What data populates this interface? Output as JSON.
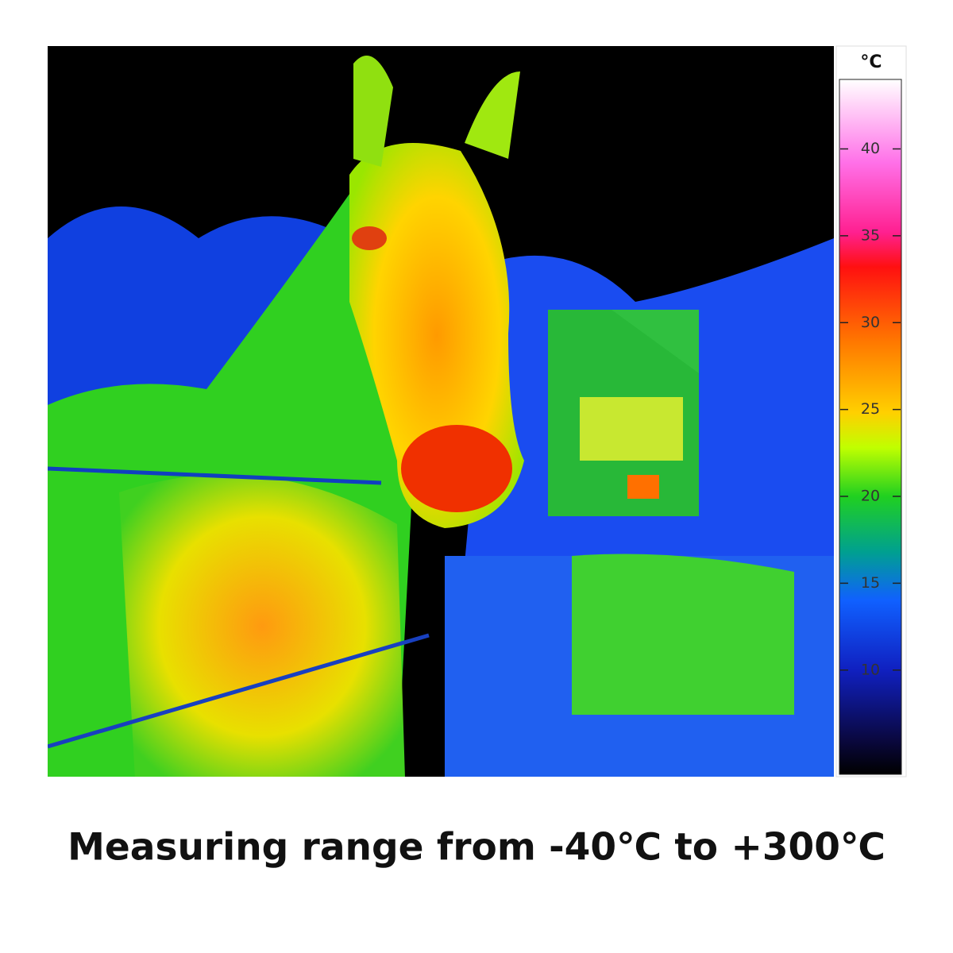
{
  "colorbar": {
    "unit": "°C",
    "range": [
      4,
      44
    ],
    "ticks": [
      10,
      15,
      20,
      25,
      30,
      35,
      40
    ]
  },
  "caption": "Measuring range from -40℃ to +300℃"
}
